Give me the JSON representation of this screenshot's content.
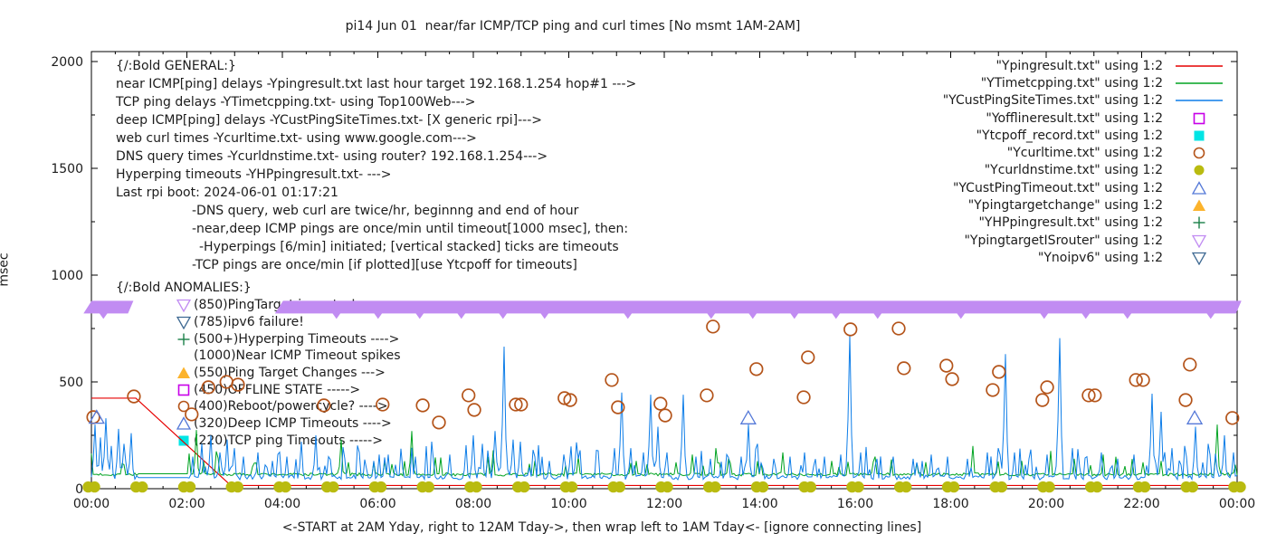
{
  "title": "pi14 Jun 01  near/far ICMP/TCP ping and curl times [No msmt 1AM-2AM]",
  "ylabel": "msec",
  "xlabel": "<-START at 2AM Yday, right to 12AM Tday->, then wrap left to 1AM Tday<- [ignore connecting lines]",
  "colors": {
    "red": "#e60000",
    "green": "#00a321",
    "blue": "#0d7de8",
    "magenta": "#c800e8",
    "cyan": "#00e5e5",
    "curl_orange": "#b4541a",
    "olive": "#b9bb10",
    "tri_blue": "#5579d8",
    "orange": "#fcb32c",
    "plus_green": "#1a8048",
    "violet": "#c18cf2",
    "navy": "#3f6a93",
    "axis": "#000000",
    "text": "#1c1c1c"
  },
  "general": {
    "lines": [
      {
        "indent": 0,
        "text": "{/:Bold GENERAL:}"
      },
      {
        "indent": 0,
        "text": "near ICMP[ping] delays -Ypingresult.txt last hour target 192.168.1.254 hop#1 --->"
      },
      {
        "indent": 0,
        "text": "TCP ping delays -YTimetcpping.txt- using Top100Web--->"
      },
      {
        "indent": 0,
        "text": "deep ICMP[ping] delays -YCustPingSiteTimes.txt- [X generic rpi]--->"
      },
      {
        "indent": 0,
        "text": "web curl times -Ycurltime.txt- using www.google.com--->"
      },
      {
        "indent": 0,
        "text": "DNS query times -Ycurldnstime.txt- using router? 192.168.1.254--->"
      },
      {
        "indent": 0,
        "text": "Hyperping timeouts -YHPpingresult.txt- --->"
      },
      {
        "indent": 0,
        "text": "Last rpi boot: 2024-06-01 01:17:21"
      },
      {
        "indent": 84,
        "text": "-DNS query, web curl are twice/hr, beginnng and end of hour"
      },
      {
        "indent": 84,
        "text": "-near,deep ICMP pings are once/min until timeout[1000 msec], then:"
      },
      {
        "indent": 92,
        "text": "-Hyperpings [6/min] initiated; [vertical stacked] ticks are timeouts"
      },
      {
        "indent": 84,
        "text": "-TCP pings are once/min [if plotted][use Ytcpoff for timeouts]"
      }
    ]
  },
  "anomalies": {
    "header": "{/:Bold ANOMALIES:}",
    "items": [
      {
        "marker": "tri-down-open",
        "color": "#c18cf2",
        "label": "(850)PingTarget is router!"
      },
      {
        "marker": "tri-down-open",
        "color": "#3f6a93",
        "label": "(785)ipv6 failure!"
      },
      {
        "marker": "plus",
        "color": "#1a8048",
        "label": "(500+)Hyperping Timeouts ---->"
      },
      {
        "marker": "none",
        "color": "",
        "label": "(1000)Near ICMP Timeout spikes"
      },
      {
        "marker": "tri-up-fill",
        "color": "#fcb32c",
        "label": "(550)Ping Target Changes --->"
      },
      {
        "marker": "square-open",
        "color": "#c800e8",
        "label": "(450)OFFLINE STATE ----->"
      },
      {
        "marker": "circle-open",
        "color": "#b4541a",
        "label": "(400)Reboot/powercycle? ---->"
      },
      {
        "marker": "tri-up-open",
        "color": "#5579d8",
        "label": "(320)Deep ICMP Timeouts ---->"
      },
      {
        "marker": "square-fill",
        "color": "#00e5e5",
        "label": "(220)TCP ping Timeouts ----->"
      }
    ]
  },
  "legend": {
    "items": [
      {
        "label": "\"Ypingresult.txt\" using 1:2",
        "marker": "line",
        "color": "#e60000"
      },
      {
        "label": "\"YTimetcpping.txt\" using 1:2",
        "marker": "line",
        "color": "#00a321"
      },
      {
        "label": "\"YCustPingSiteTimes.txt\" using 1:2",
        "marker": "line",
        "color": "#0d7de8"
      },
      {
        "label": "\"Yofflineresult.txt\" using 1:2",
        "marker": "square-open",
        "color": "#c800e8"
      },
      {
        "label": "\"Ytcpoff_record.txt\" using 1:2",
        "marker": "square-fill",
        "color": "#00e5e5"
      },
      {
        "label": "\"Ycurltime.txt\" using 1:2",
        "marker": "circle-open",
        "color": "#b4541a"
      },
      {
        "label": "\"Ycurldnstime.txt\" using 1:2",
        "marker": "circle-fill",
        "color": "#b9bb10"
      },
      {
        "label": "\"YCustPingTimeout.txt\" using 1:2",
        "marker": "tri-up-open",
        "color": "#5579d8"
      },
      {
        "label": "\"Ypingtargetchange\" using 1:2",
        "marker": "tri-up-fill",
        "color": "#fcb32c"
      },
      {
        "label": "\"YHPpingresult.txt\" using 1:2",
        "marker": "plus",
        "color": "#1a8048"
      },
      {
        "label": "\"YpingtargetISrouter\" using 1:2",
        "marker": "tri-down-open",
        "color": "#c18cf2"
      },
      {
        "label": "\"Ynoipv6\" using 1:2",
        "marker": "tri-down-open",
        "color": "#3f6a93"
      }
    ]
  },
  "chart_data": {
    "type": "line",
    "title": "pi14 Jun 01  near/far ICMP/TCP ping and curl times [No msmt 1AM-2AM]",
    "xlabel": "<-START at 2AM Yday, right to 12AM Tday->, then wrap left to 1AM Tday<- [ignore connecting lines]",
    "ylabel": "msec",
    "xlim": [
      0,
      24
    ],
    "ylim": [
      0,
      2000
    ],
    "grid": false,
    "legend_position": "top-right-inside",
    "yticks": [
      0,
      500,
      1000,
      1500,
      2000
    ],
    "xticks": [
      {
        "h": 0,
        "label": "00:00"
      },
      {
        "h": 2,
        "label": "02:00"
      },
      {
        "h": 4,
        "label": "04:00"
      },
      {
        "h": 6,
        "label": "06:00"
      },
      {
        "h": 8,
        "label": "08:00"
      },
      {
        "h": 10,
        "label": "10:00"
      },
      {
        "h": 12,
        "label": "12:00"
      },
      {
        "h": 14,
        "label": "14:00"
      },
      {
        "h": 16,
        "label": "16:00"
      },
      {
        "h": 18,
        "label": "18:00"
      },
      {
        "h": 20,
        "label": "20:00"
      },
      {
        "h": 22,
        "label": "22:00"
      },
      {
        "h": 24,
        "label": "00:00"
      }
    ],
    "series": [
      {
        "name": "Ypingresult.txt",
        "type": "line",
        "color": "#e60000",
        "points": [
          [
            0,
            424
          ],
          [
            0.93,
            424
          ],
          [
            2.92,
            15
          ],
          [
            24,
            15
          ]
        ]
      },
      {
        "name": "YTimetcpping.txt",
        "type": "noisy-line",
        "color": "#00a321",
        "seed": 7,
        "base": 70,
        "gap": [
          0.95,
          2.03
        ],
        "noise": {
          "jitter": 14,
          "prob": 0.08,
          "amp": 95
        },
        "spikes": [
          [
            2.2,
            275
          ],
          [
            2.6,
            150
          ],
          [
            3.4,
            120
          ],
          [
            5.25,
            230
          ],
          [
            6.71,
            270
          ],
          [
            7.3,
            120
          ],
          [
            8.4,
            180
          ],
          [
            9.3,
            130
          ],
          [
            10.2,
            150
          ],
          [
            11.4,
            130
          ],
          [
            12.6,
            160
          ],
          [
            13.4,
            120
          ],
          [
            14.5,
            170
          ],
          [
            15.5,
            130
          ],
          [
            16.4,
            150
          ],
          [
            17.3,
            120
          ],
          [
            18.46,
            200
          ],
          [
            19.5,
            130
          ],
          [
            20.6,
            140
          ],
          [
            21.2,
            160
          ],
          [
            22.4,
            130
          ],
          [
            23.58,
            300
          ]
        ]
      },
      {
        "name": "YCustPingSiteTimes.txt",
        "type": "noisy-line",
        "color": "#0d7de8",
        "seed": 13,
        "base": 52,
        "gap": [
          0.95,
          2.03
        ],
        "noise": {
          "jitter": 22,
          "prob": 0.17,
          "amp": 170
        },
        "spikes": [
          [
            0.08,
            300
          ],
          [
            0.18,
            240
          ],
          [
            0.3,
            330
          ],
          [
            0.42,
            200
          ],
          [
            0.55,
            280
          ],
          [
            0.68,
            210
          ],
          [
            0.85,
            260
          ],
          [
            2.12,
            150
          ],
          [
            2.3,
            210
          ],
          [
            2.5,
            250
          ],
          [
            2.68,
            170
          ],
          [
            2.85,
            230
          ],
          [
            3.0,
            190
          ],
          [
            3.2,
            150
          ],
          [
            3.5,
            170
          ],
          [
            3.8,
            130
          ],
          [
            4.1,
            150
          ],
          [
            4.4,
            220
          ],
          [
            4.7,
            250
          ],
          [
            4.95,
            150
          ],
          [
            5.3,
            140
          ],
          [
            5.6,
            170
          ],
          [
            5.9,
            130
          ],
          [
            6.2,
            160
          ],
          [
            6.5,
            140
          ],
          [
            6.8,
            150
          ],
          [
            7.15,
            130
          ],
          [
            7.5,
            160
          ],
          [
            7.85,
            190
          ],
          [
            8.0,
            250
          ],
          [
            8.2,
            210
          ],
          [
            8.45,
            270
          ],
          [
            8.66,
            665
          ],
          [
            8.82,
            230
          ],
          [
            9.0,
            220
          ],
          [
            9.3,
            150
          ],
          [
            9.6,
            130
          ],
          [
            9.9,
            160
          ],
          [
            10.2,
            140
          ],
          [
            10.6,
            150
          ],
          [
            10.95,
            190
          ],
          [
            11.11,
            450
          ],
          [
            11.3,
            190
          ],
          [
            11.55,
            170
          ],
          [
            11.73,
            440
          ],
          [
            11.87,
            290
          ],
          [
            12.05,
            170
          ],
          [
            12.4,
            440
          ],
          [
            12.65,
            150
          ],
          [
            12.95,
            140
          ],
          [
            13.3,
            160
          ],
          [
            13.6,
            150
          ],
          [
            13.76,
            300
          ],
          [
            13.95,
            210
          ],
          [
            14.3,
            140
          ],
          [
            14.65,
            150
          ],
          [
            14.95,
            170
          ],
          [
            15.35,
            150
          ],
          [
            15.7,
            160
          ],
          [
            15.9,
            720
          ],
          [
            16.1,
            170
          ],
          [
            16.45,
            140
          ],
          [
            16.8,
            150
          ],
          [
            17.2,
            140
          ],
          [
            17.6,
            160
          ],
          [
            17.95,
            150
          ],
          [
            18.35,
            140
          ],
          [
            18.75,
            170
          ],
          [
            19.0,
            190
          ],
          [
            19.13,
            630
          ],
          [
            19.35,
            170
          ],
          [
            19.65,
            140
          ],
          [
            20.0,
            160
          ],
          [
            20.3,
            705
          ],
          [
            20.55,
            190
          ],
          [
            20.85,
            150
          ],
          [
            21.15,
            170
          ],
          [
            21.5,
            140
          ],
          [
            21.85,
            160
          ],
          [
            22.22,
            445
          ],
          [
            22.39,
            360
          ],
          [
            22.65,
            190
          ],
          [
            22.95,
            150
          ],
          [
            23.11,
            290
          ],
          [
            23.45,
            160
          ],
          [
            23.75,
            250
          ],
          [
            23.92,
            170
          ]
        ]
      },
      {
        "name": "Ycurltime.txt",
        "type": "scatter",
        "marker": "circle-open",
        "color": "#b4541a",
        "points": [
          [
            0.04,
            335
          ],
          [
            0.89,
            432
          ],
          [
            2.1,
            348
          ],
          [
            2.45,
            475
          ],
          [
            2.83,
            500
          ],
          [
            3.07,
            487
          ],
          [
            4.87,
            390
          ],
          [
            6.1,
            394
          ],
          [
            6.94,
            390
          ],
          [
            7.28,
            310
          ],
          [
            7.9,
            437
          ],
          [
            8.02,
            369
          ],
          [
            8.89,
            394
          ],
          [
            9.0,
            394
          ],
          [
            9.91,
            424
          ],
          [
            10.03,
            415
          ],
          [
            10.9,
            509
          ],
          [
            11.03,
            381
          ],
          [
            11.92,
            398
          ],
          [
            12.02,
            343
          ],
          [
            12.89,
            437
          ],
          [
            13.02,
            759
          ],
          [
            13.93,
            560
          ],
          [
            14.92,
            428
          ],
          [
            15.01,
            615
          ],
          [
            15.9,
            746
          ],
          [
            16.91,
            750
          ],
          [
            17.02,
            564
          ],
          [
            17.91,
            576
          ],
          [
            18.03,
            513
          ],
          [
            18.88,
            462
          ],
          [
            19.01,
            547
          ],
          [
            19.92,
            415
          ],
          [
            20.02,
            475
          ],
          [
            20.89,
            437
          ],
          [
            21.02,
            437
          ],
          [
            21.88,
            509
          ],
          [
            22.03,
            509
          ],
          [
            22.92,
            415
          ],
          [
            23.01,
            581
          ],
          [
            23.9,
            331
          ]
        ]
      },
      {
        "name": "Ycurldnstime.txt",
        "type": "scatter",
        "marker": "dot-pair",
        "color": "#b9bb10",
        "points": [
          [
            0,
            8
          ],
          [
            1,
            8
          ],
          [
            2,
            8
          ],
          [
            3,
            8
          ],
          [
            4,
            8
          ],
          [
            5,
            8
          ],
          [
            6,
            8
          ],
          [
            7,
            8
          ],
          [
            8,
            8
          ],
          [
            9,
            8
          ],
          [
            10,
            8
          ],
          [
            11,
            8
          ],
          [
            12,
            8
          ],
          [
            13,
            8
          ],
          [
            14,
            8
          ],
          [
            15,
            8
          ],
          [
            16,
            8
          ],
          [
            17,
            8
          ],
          [
            18,
            8
          ],
          [
            19,
            8
          ],
          [
            20,
            8
          ],
          [
            21,
            8
          ],
          [
            22,
            8
          ],
          [
            23,
            8
          ],
          [
            24,
            8
          ]
        ]
      },
      {
        "name": "YCustPingTimeout.txt",
        "type": "scatter",
        "marker": "tri-up-open",
        "color": "#5579d8",
        "points": [
          [
            0.11,
            330
          ],
          [
            13.76,
            327
          ],
          [
            23.11,
            327
          ]
        ]
      },
      {
        "name": "YpingtargetISrouter",
        "type": "band",
        "color": "#c18cf2",
        "value": 850,
        "segments": [
          [
            -0.09,
            0.88
          ],
          [
            3.92,
            24.09
          ]
        ]
      }
    ]
  }
}
